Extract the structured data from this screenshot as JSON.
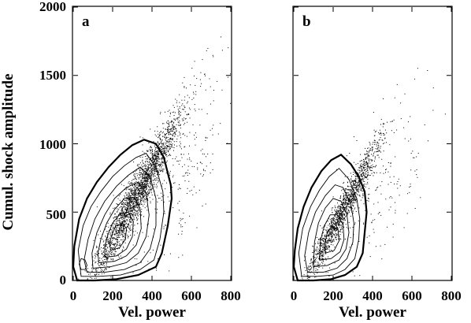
{
  "chart_data": [
    {
      "type": "scatter",
      "panel_label": "a",
      "xlabel": "Vel. power",
      "ylabel": "Cumul. shock amplitude",
      "xlim": [
        0,
        800
      ],
      "ylim": [
        0,
        2000
      ],
      "xticks": [
        "0",
        "200",
        "400",
        "600",
        "800"
      ],
      "yticks": [
        "0",
        "500",
        "1000",
        "1500",
        "2000"
      ],
      "overlay": "density contours",
      "contours": [
        [
          [
            20,
            0
          ],
          [
            110,
            0
          ],
          [
            220,
            10
          ],
          [
            330,
            40
          ],
          [
            420,
            100
          ],
          [
            450,
            200
          ],
          [
            480,
            400
          ],
          [
            500,
            600
          ],
          [
            495,
            700
          ],
          [
            460,
            900
          ],
          [
            420,
            1000
          ],
          [
            360,
            1030
          ],
          [
            300,
            990
          ],
          [
            240,
            920
          ],
          [
            180,
            830
          ],
          [
            120,
            720
          ],
          [
            70,
            600
          ],
          [
            30,
            450
          ],
          [
            5,
            250
          ],
          [
            0,
            100
          ]
        ],
        [
          [
            40,
            30
          ],
          [
            130,
            30
          ],
          [
            240,
            40
          ],
          [
            340,
            80
          ],
          [
            410,
            150
          ],
          [
            440,
            300
          ],
          [
            460,
            500
          ],
          [
            455,
            650
          ],
          [
            420,
            830
          ],
          [
            370,
            930
          ],
          [
            320,
            900
          ],
          [
            260,
            840
          ],
          [
            200,
            760
          ],
          [
            140,
            650
          ],
          [
            90,
            540
          ],
          [
            50,
            400
          ],
          [
            25,
            220
          ]
        ],
        [
          [
            70,
            60
          ],
          [
            160,
            60
          ],
          [
            260,
            80
          ],
          [
            340,
            130
          ],
          [
            390,
            230
          ],
          [
            420,
            400
          ],
          [
            420,
            600
          ],
          [
            390,
            760
          ],
          [
            340,
            830
          ],
          [
            280,
            770
          ],
          [
            220,
            690
          ],
          [
            160,
            580
          ],
          [
            110,
            450
          ],
          [
            75,
            300
          ],
          [
            55,
            150
          ]
        ],
        [
          [
            100,
            90
          ],
          [
            190,
            100
          ],
          [
            270,
            130
          ],
          [
            330,
            200
          ],
          [
            370,
            320
          ],
          [
            385,
            480
          ],
          [
            370,
            640
          ],
          [
            330,
            720
          ],
          [
            270,
            680
          ],
          [
            210,
            600
          ],
          [
            160,
            480
          ],
          [
            120,
            350
          ],
          [
            95,
            200
          ]
        ],
        [
          [
            130,
            130
          ],
          [
            210,
            140
          ],
          [
            270,
            180
          ],
          [
            320,
            260
          ],
          [
            345,
            380
          ],
          [
            340,
            520
          ],
          [
            310,
            610
          ],
          [
            260,
            600
          ],
          [
            210,
            520
          ],
          [
            170,
            420
          ],
          [
            140,
            300
          ],
          [
            125,
            200
          ]
        ],
        [
          [
            160,
            170
          ],
          [
            220,
            180
          ],
          [
            270,
            230
          ],
          [
            300,
            320
          ],
          [
            305,
            430
          ],
          [
            280,
            500
          ],
          [
            240,
            490
          ],
          [
            200,
            420
          ],
          [
            175,
            330
          ],
          [
            160,
            250
          ]
        ],
        [
          [
            190,
            220
          ],
          [
            235,
            240
          ],
          [
            265,
            300
          ],
          [
            270,
            380
          ],
          [
            250,
            420
          ],
          [
            215,
            400
          ],
          [
            195,
            330
          ],
          [
            185,
            270
          ]
        ],
        [
          [
            40,
            80
          ],
          [
            60,
            80
          ],
          [
            70,
            110
          ],
          [
            60,
            150
          ],
          [
            40,
            160
          ],
          [
            30,
            120
          ]
        ]
      ]
    },
    {
      "type": "scatter",
      "panel_label": "b",
      "xlabel": "Vel. power",
      "xlim": [
        0,
        800
      ],
      "ylim": [
        0,
        2000
      ],
      "xticks": [
        "0",
        "200",
        "400",
        "600",
        "800"
      ],
      "overlay": "density contours",
      "contours": [
        [
          [
            20,
            0
          ],
          [
            100,
            0
          ],
          [
            190,
            10
          ],
          [
            260,
            40
          ],
          [
            320,
            100
          ],
          [
            350,
            200
          ],
          [
            360,
            350
          ],
          [
            370,
            500
          ],
          [
            360,
            650
          ],
          [
            330,
            760
          ],
          [
            290,
            850
          ],
          [
            240,
            920
          ],
          [
            190,
            880
          ],
          [
            140,
            800
          ],
          [
            90,
            680
          ],
          [
            50,
            540
          ],
          [
            20,
            380
          ],
          [
            5,
            220
          ],
          [
            0,
            100
          ]
        ],
        [
          [
            40,
            30
          ],
          [
            120,
            30
          ],
          [
            200,
            40
          ],
          [
            260,
            80
          ],
          [
            310,
            160
          ],
          [
            330,
            300
          ],
          [
            335,
            450
          ],
          [
            320,
            600
          ],
          [
            280,
            740
          ],
          [
            230,
            820
          ],
          [
            180,
            760
          ],
          [
            130,
            660
          ],
          [
            85,
            540
          ],
          [
            45,
            380
          ],
          [
            25,
            200
          ]
        ],
        [
          [
            70,
            60
          ],
          [
            150,
            60
          ],
          [
            220,
            90
          ],
          [
            270,
            160
          ],
          [
            300,
            280
          ],
          [
            305,
            420
          ],
          [
            290,
            560
          ],
          [
            250,
            680
          ],
          [
            210,
            700
          ],
          [
            160,
            620
          ],
          [
            110,
            500
          ],
          [
            75,
            350
          ],
          [
            55,
            180
          ]
        ],
        [
          [
            100,
            100
          ],
          [
            170,
            110
          ],
          [
            230,
            150
          ],
          [
            265,
            230
          ],
          [
            280,
            350
          ],
          [
            270,
            480
          ],
          [
            240,
            580
          ],
          [
            200,
            600
          ],
          [
            160,
            530
          ],
          [
            125,
            420
          ],
          [
            105,
            280
          ]
        ],
        [
          [
            130,
            150
          ],
          [
            190,
            160
          ],
          [
            235,
            210
          ],
          [
            255,
            300
          ],
          [
            250,
            410
          ],
          [
            220,
            480
          ],
          [
            185,
            480
          ],
          [
            155,
            400
          ],
          [
            135,
            290
          ]
        ],
        [
          [
            160,
            200
          ],
          [
            205,
            220
          ],
          [
            230,
            290
          ],
          [
            225,
            370
          ],
          [
            195,
            400
          ],
          [
            170,
            350
          ],
          [
            160,
            280
          ]
        ]
      ]
    }
  ]
}
